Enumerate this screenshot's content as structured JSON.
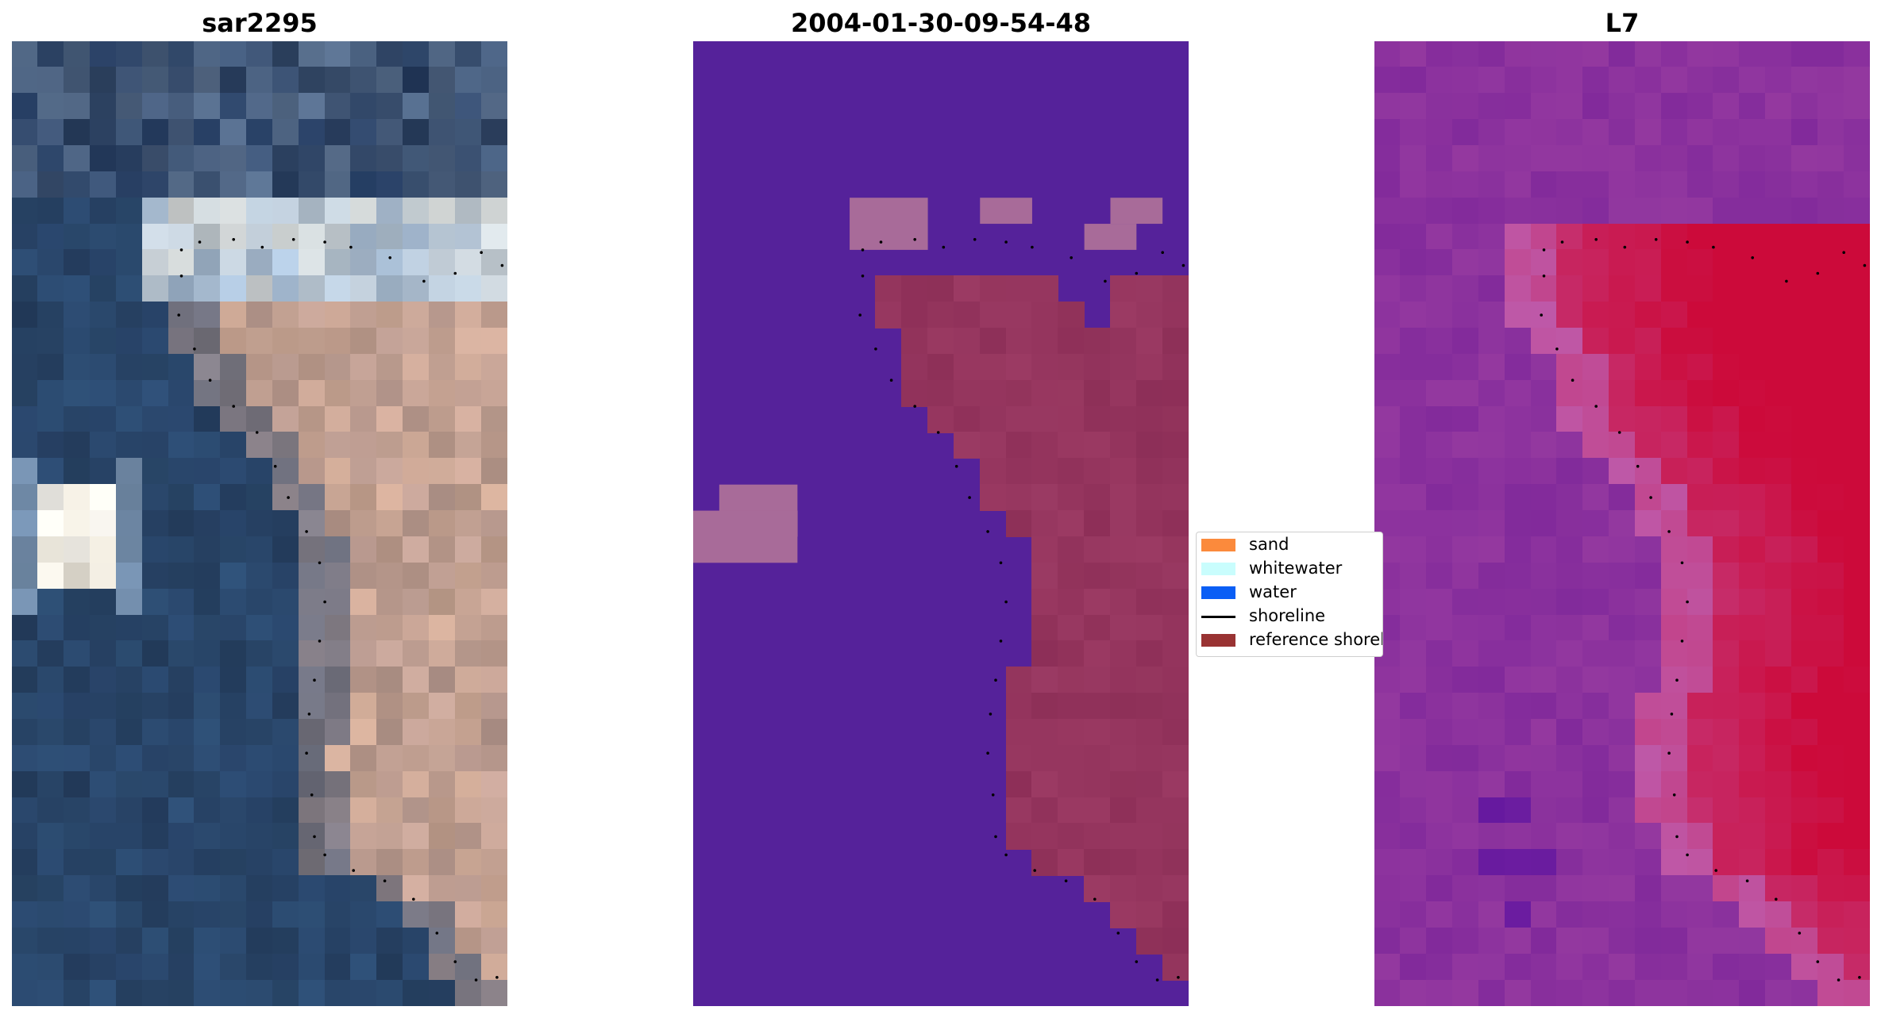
{
  "panels": [
    {
      "title": "sar2295"
    },
    {
      "title": "2004-01-30-09-54-48"
    },
    {
      "title": "L7"
    }
  ],
  "legend": {
    "items": [
      {
        "label": "sand",
        "color": "#fb8a3c",
        "kind": "patch"
      },
      {
        "label": "whitewater",
        "color": "#c9fdfd",
        "kind": "patch"
      },
      {
        "label": "water",
        "color": "#0a5ef5",
        "kind": "patch"
      },
      {
        "label": "shoreline",
        "color": "#000000",
        "kind": "line"
      },
      {
        "label": "reference shoreline",
        "color": "#993333",
        "kind": "patch"
      }
    ]
  },
  "colors": {
    "classification_background": "#55229a",
    "classification_sand_overlay": "#a86b99",
    "classification_reference_overlay": "#9b3a63",
    "mndwi_low": "#7a2499",
    "mndwi_high": "#cc0a3a",
    "shoreline_dots": "#000000"
  }
}
